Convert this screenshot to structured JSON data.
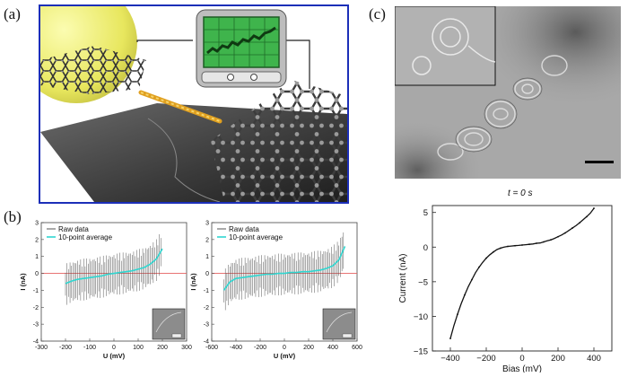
{
  "labels": {
    "a": "(a)",
    "b": "(b)",
    "c": "(c)"
  },
  "colors": {
    "frame_blue": "#1c2fb8",
    "raw_gray": "#555555",
    "avg_cyan": "#2fd6d0",
    "zero_red": "#e56060",
    "screen_green": "#3fb44c"
  },
  "chart_data": [
    {
      "type": "line",
      "xlabel": "U (mV)",
      "ylabel": "I (nA)",
      "xlim": [
        -300,
        300
      ],
      "ylim": [
        -4,
        3
      ],
      "x_ticks": [
        "-300",
        "-200",
        "-100",
        "0",
        "100",
        "200",
        "300"
      ],
      "y_ticks": [
        "-4",
        "-3",
        "-2",
        "-1",
        "0",
        "1",
        "2",
        "3"
      ],
      "legend": [
        "Raw data",
        "10-point average"
      ],
      "series": [
        {
          "name": "10-point average",
          "x": [
            -200,
            -175,
            -150,
            -125,
            -100,
            -75,
            -50,
            -25,
            0,
            25,
            50,
            75,
            100,
            125,
            150,
            175,
            200
          ],
          "y": [
            -0.6,
            -0.45,
            -0.35,
            -0.3,
            -0.25,
            -0.2,
            -0.15,
            -0.05,
            0.0,
            0.05,
            0.1,
            0.15,
            0.25,
            0.35,
            0.55,
            0.85,
            1.45
          ]
        }
      ],
      "raw_error_band": 1.3,
      "zero_line": 0
    },
    {
      "type": "line",
      "xlabel": "U (mV)",
      "ylabel": "I (nA)",
      "xlim": [
        -600,
        600
      ],
      "ylim": [
        -4,
        3
      ],
      "x_ticks": [
        "-600",
        "-400",
        "-200",
        "0",
        "200",
        "400",
        "600"
      ],
      "y_ticks": [
        "-4",
        "-3",
        "-2",
        "-1",
        "0",
        "1",
        "2",
        "3"
      ],
      "legend": [
        "Raw data",
        "10-point average"
      ],
      "series": [
        {
          "name": "10-point average",
          "x": [
            -500,
            -450,
            -400,
            -350,
            -300,
            -250,
            -200,
            -150,
            -100,
            -50,
            0,
            50,
            100,
            150,
            200,
            250,
            300,
            350,
            400,
            450,
            500
          ],
          "y": [
            -1.0,
            -0.5,
            -0.3,
            -0.25,
            -0.2,
            -0.15,
            -0.1,
            -0.05,
            -0.05,
            0.0,
            0.0,
            0.05,
            0.05,
            0.1,
            0.1,
            0.15,
            0.2,
            0.3,
            0.45,
            0.8,
            1.6
          ]
        }
      ],
      "raw_error_band": 1.3,
      "zero_line": 0
    },
    {
      "type": "line",
      "title": "t = 0 s",
      "xlabel": "Bias (mV)",
      "ylabel": "Current (nA)",
      "xlim": [
        -500,
        500
      ],
      "ylim": [
        -15,
        6
      ],
      "x_ticks": [
        "-400",
        "-200",
        "0",
        "200",
        "400"
      ],
      "y_ticks": [
        "5",
        "0",
        "-5",
        "-10",
        "-15"
      ],
      "series": [
        {
          "x": [
            -400,
            -380,
            -360,
            -340,
            -320,
            -300,
            -280,
            -260,
            -240,
            -220,
            -200,
            -180,
            -160,
            -140,
            -120,
            -100,
            -80,
            -60,
            -40,
            -20,
            0,
            20,
            40,
            60,
            80,
            100,
            120,
            140,
            160,
            180,
            200,
            220,
            240,
            260,
            280,
            300,
            320,
            340,
            360,
            380,
            400
          ],
          "y": [
            -13.2,
            -11.3,
            -9.7,
            -8.2,
            -6.9,
            -5.7,
            -4.7,
            -3.7,
            -2.9,
            -2.2,
            -1.6,
            -1.1,
            -0.7,
            -0.35,
            -0.15,
            0.0,
            0.1,
            0.15,
            0.2,
            0.25,
            0.3,
            0.35,
            0.4,
            0.45,
            0.55,
            0.6,
            0.75,
            0.9,
            1.05,
            1.25,
            1.5,
            1.75,
            2.05,
            2.4,
            2.75,
            3.1,
            3.5,
            3.95,
            4.4,
            4.9,
            5.6
          ]
        }
      ]
    }
  ]
}
